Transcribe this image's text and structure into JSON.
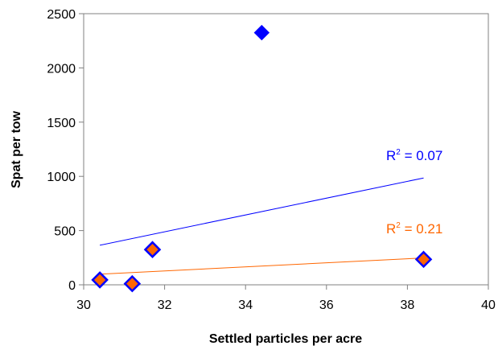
{
  "chart_data": {
    "type": "scatter",
    "xlabel": "Settled particles per acre",
    "ylabel": "Spat per tow",
    "xlim": [
      30,
      40
    ],
    "ylim": [
      0,
      2500
    ],
    "xticks": [
      30,
      32,
      34,
      36,
      38,
      40
    ],
    "yticks": [
      0,
      500,
      1000,
      1500,
      2000,
      2500
    ],
    "xtick_labels": [
      "30",
      "32",
      "34",
      "36",
      "38",
      "40"
    ],
    "ytick_labels": [
      "0",
      "500",
      "1000",
      "1500",
      "2000",
      "2500"
    ],
    "grid": false,
    "series": [
      {
        "color": "#0000FF",
        "marker": "diamond",
        "points": [
          {
            "x": 30.4,
            "y": 45
          },
          {
            "x": 31.2,
            "y": 10
          },
          {
            "x": 31.7,
            "y": 325
          },
          {
            "x": 34.4,
            "y": 2325
          },
          {
            "x": 38.4,
            "y": 235
          }
        ],
        "trendline": {
          "x": [
            30.4,
            38.4
          ],
          "y": [
            365,
            985
          ]
        },
        "annotation": {
          "base": "R",
          "sup": "2",
          "rest": " = 0.07"
        }
      },
      {
        "color": "#FF6600",
        "marker": "diamond",
        "outline": "#0000FF",
        "points": [
          {
            "x": 30.4,
            "y": 45
          },
          {
            "x": 31.2,
            "y": 10
          },
          {
            "x": 31.7,
            "y": 325
          },
          {
            "x": 38.4,
            "y": 235
          }
        ],
        "trendline": {
          "x": [
            30.4,
            38.4
          ],
          "y": [
            98,
            248
          ]
        },
        "annotation": {
          "base": "R",
          "sup": "2",
          "rest": " = 0.21"
        }
      }
    ]
  }
}
